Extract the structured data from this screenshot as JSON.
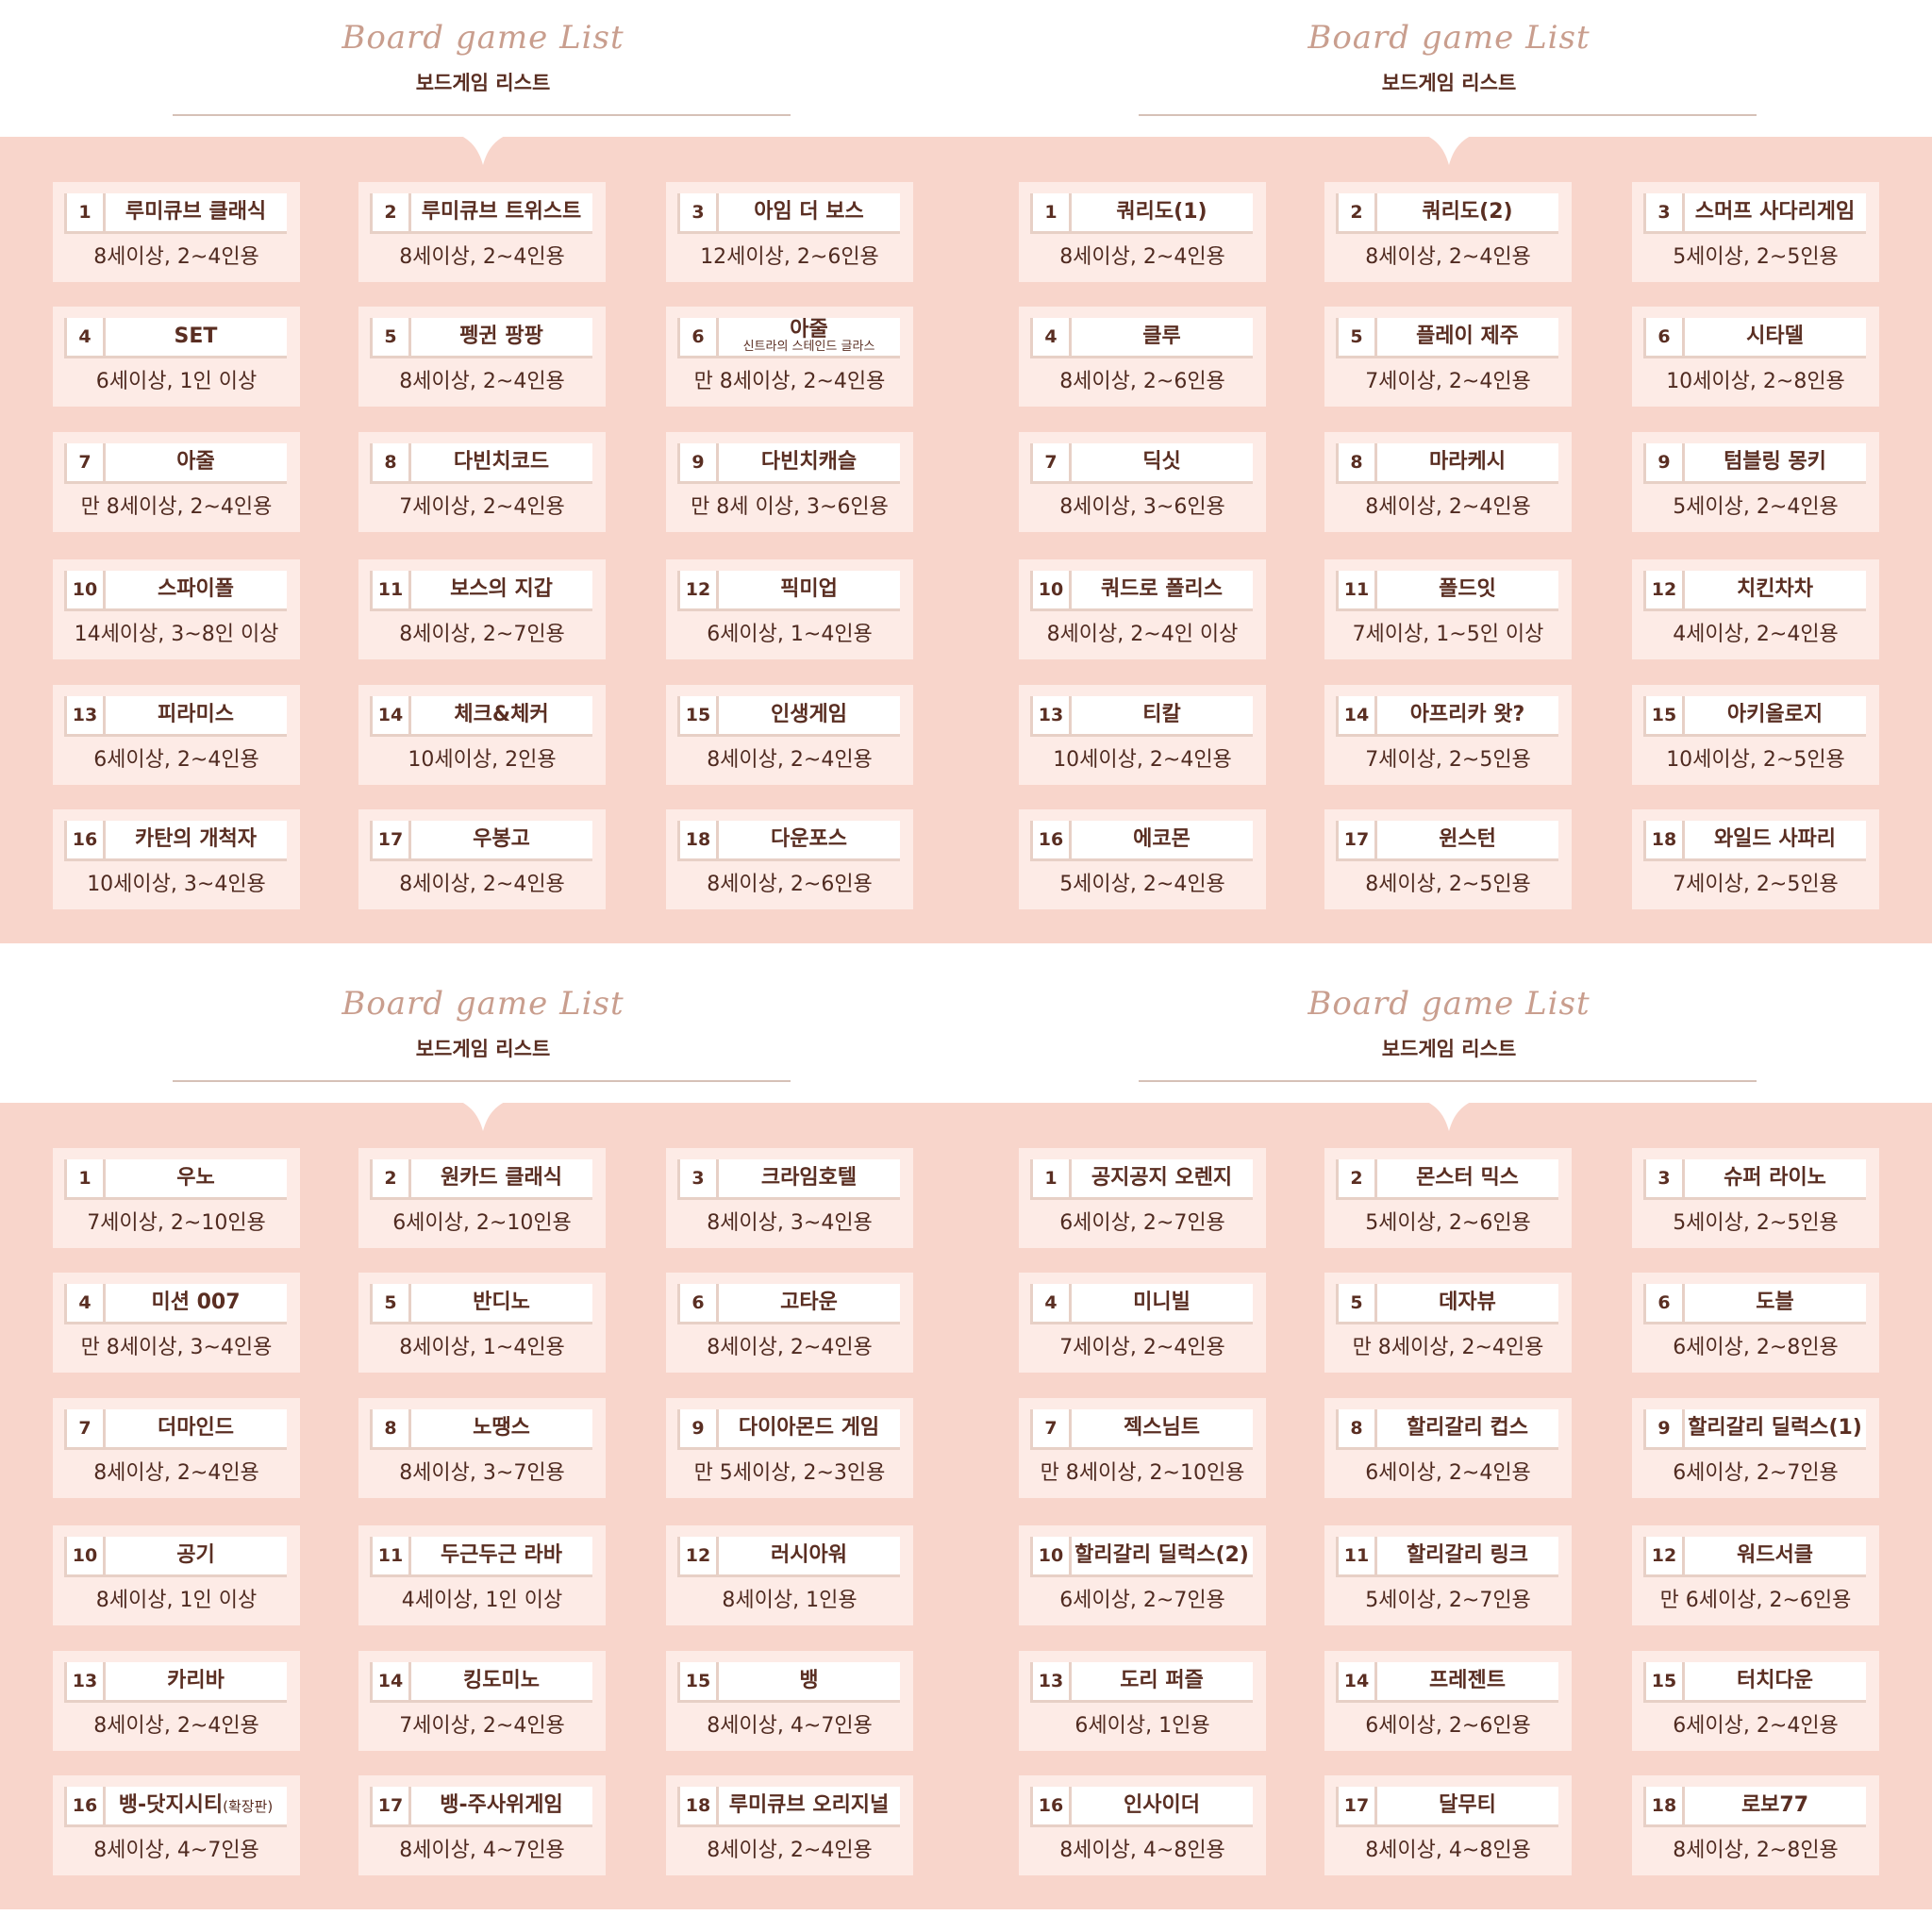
{
  "header": {
    "script_title": "Board game List",
    "kr_title": "보드게임 리스트"
  },
  "panels": [
    {
      "cards": [
        {
          "num": "1",
          "name": "루미큐브 클래식",
          "info": "8세이상, 2~4인용"
        },
        {
          "num": "2",
          "name": "루미큐브 트위스트",
          "info": "8세이상, 2~4인용"
        },
        {
          "num": "3",
          "name": "아임 더 보스",
          "info": "12세이상, 2~6인용"
        },
        {
          "num": "4",
          "name": "SET",
          "info": "6세이상, 1인 이상"
        },
        {
          "num": "5",
          "name": "펭귄 팡팡",
          "info": "8세이상, 2~4인용"
        },
        {
          "num": "6",
          "name": "아줄",
          "sub": "신트라의 스테인드 글라스",
          "info": "만 8세이상, 2~4인용"
        },
        {
          "num": "7",
          "name": "아줄",
          "info": "만 8세이상, 2~4인용"
        },
        {
          "num": "8",
          "name": "다빈치코드",
          "info": "7세이상, 2~4인용"
        },
        {
          "num": "9",
          "name": "다빈치캐슬",
          "info": "만 8세 이상, 3~6인용"
        },
        {
          "num": "10",
          "name": "스파이폴",
          "info": "14세이상, 3~8인 이상"
        },
        {
          "num": "11",
          "name": "보스의 지갑",
          "info": "8세이상, 2~7인용"
        },
        {
          "num": "12",
          "name": "픽미업",
          "info": "6세이상, 1~4인용"
        },
        {
          "num": "13",
          "name": "피라미스",
          "info": "6세이상, 2~4인용"
        },
        {
          "num": "14",
          "name": "체크&체커",
          "info": "10세이상, 2인용"
        },
        {
          "num": "15",
          "name": "인생게임",
          "info": "8세이상, 2~4인용"
        },
        {
          "num": "16",
          "name": "카탄의 개척자",
          "info": "10세이상, 3~4인용"
        },
        {
          "num": "17",
          "name": "우봉고",
          "info": "8세이상, 2~4인용"
        },
        {
          "num": "18",
          "name": "다운포스",
          "info": "8세이상, 2~6인용"
        }
      ]
    },
    {
      "cards": [
        {
          "num": "1",
          "name": "쿼리도(1)",
          "info": "8세이상, 2~4인용"
        },
        {
          "num": "2",
          "name": "쿼리도(2)",
          "info": "8세이상, 2~4인용"
        },
        {
          "num": "3",
          "name": "스머프 사다리게임",
          "info": "5세이상, 2~5인용"
        },
        {
          "num": "4",
          "name": "클루",
          "info": "8세이상, 2~6인용"
        },
        {
          "num": "5",
          "name": "플레이 제주",
          "info": "7세이상, 2~4인용"
        },
        {
          "num": "6",
          "name": "시타델",
          "info": "10세이상, 2~8인용"
        },
        {
          "num": "7",
          "name": "딕싯",
          "info": "8세이상, 3~6인용"
        },
        {
          "num": "8",
          "name": "마라케시",
          "info": "8세이상, 2~4인용"
        },
        {
          "num": "9",
          "name": "텀블링 몽키",
          "info": "5세이상, 2~4인용"
        },
        {
          "num": "10",
          "name": "쿼드로 폴리스",
          "info": "8세이상, 2~4인 이상"
        },
        {
          "num": "11",
          "name": "폴드잇",
          "info": "7세이상, 1~5인 이상"
        },
        {
          "num": "12",
          "name": "치킨차차",
          "info": "4세이상, 2~4인용"
        },
        {
          "num": "13",
          "name": "티칼",
          "info": "10세이상, 2~4인용"
        },
        {
          "num": "14",
          "name": "아프리카 왓?",
          "info": "7세이상, 2~5인용"
        },
        {
          "num": "15",
          "name": "아키올로지",
          "info": "10세이상, 2~5인용"
        },
        {
          "num": "16",
          "name": "에코몬",
          "info": "5세이상, 2~4인용"
        },
        {
          "num": "17",
          "name": "윈스턴",
          "info": "8세이상, 2~5인용"
        },
        {
          "num": "18",
          "name": "와일드 사파리",
          "info": "7세이상, 2~5인용"
        }
      ]
    },
    {
      "cards": [
        {
          "num": "1",
          "name": "우노",
          "info": "7세이상, 2~10인용"
        },
        {
          "num": "2",
          "name": "원카드 클래식",
          "info": "6세이상, 2~10인용"
        },
        {
          "num": "3",
          "name": "크라임호텔",
          "info": "8세이상, 3~4인용"
        },
        {
          "num": "4",
          "name": "미션 007",
          "info": "만 8세이상, 3~4인용"
        },
        {
          "num": "5",
          "name": "반디노",
          "info": "8세이상, 1~4인용"
        },
        {
          "num": "6",
          "name": "고타운",
          "info": "8세이상, 2~4인용"
        },
        {
          "num": "7",
          "name": "더마인드",
          "info": "8세이상, 2~4인용"
        },
        {
          "num": "8",
          "name": "노땡스",
          "info": "8세이상, 3~7인용"
        },
        {
          "num": "9",
          "name": "다이아몬드 게임",
          "info": "만 5세이상, 2~3인용"
        },
        {
          "num": "10",
          "name": "공기",
          "info": "8세이상, 1인 이상"
        },
        {
          "num": "11",
          "name": "두근두근 라바",
          "info": "4세이상, 1인 이상"
        },
        {
          "num": "12",
          "name": "러시아워",
          "info": "8세이상, 1인용"
        },
        {
          "num": "13",
          "name": "카리바",
          "info": "8세이상, 2~4인용"
        },
        {
          "num": "14",
          "name": "킹도미노",
          "info": "7세이상, 2~4인용"
        },
        {
          "num": "15",
          "name": "뱅",
          "info": "8세이상, 4~7인용"
        },
        {
          "num": "16",
          "name": "뱅-닷지시티",
          "small": "(확장판)",
          "info": "8세이상, 4~7인용"
        },
        {
          "num": "17",
          "name": "뱅-주사위게임",
          "info": "8세이상, 4~7인용"
        },
        {
          "num": "18",
          "name": "루미큐브 오리지널",
          "info": "8세이상, 2~4인용"
        }
      ]
    },
    {
      "cards": [
        {
          "num": "1",
          "name": "공지공지 오렌지",
          "info": "6세이상, 2~7인용"
        },
        {
          "num": "2",
          "name": "몬스터 믹스",
          "info": "5세이상, 2~6인용"
        },
        {
          "num": "3",
          "name": "슈퍼 라이노",
          "info": "5세이상, 2~5인용"
        },
        {
          "num": "4",
          "name": "미니빌",
          "info": "7세이상, 2~4인용"
        },
        {
          "num": "5",
          "name": "데자뷰",
          "info": "만 8세이상, 2~4인용"
        },
        {
          "num": "6",
          "name": "도블",
          "info": "6세이상, 2~8인용"
        },
        {
          "num": "7",
          "name": "젝스님트",
          "info": "만 8세이상, 2~10인용"
        },
        {
          "num": "8",
          "name": "할리갈리 컵스",
          "info": "6세이상, 2~4인용"
        },
        {
          "num": "9",
          "name": "할리갈리 딜럭스(1)",
          "info": "6세이상, 2~7인용"
        },
        {
          "num": "10",
          "name": "할리갈리 딜럭스(2)",
          "info": "6세이상, 2~7인용"
        },
        {
          "num": "11",
          "name": "할리갈리 링크",
          "info": "5세이상, 2~7인용"
        },
        {
          "num": "12",
          "name": "워드서클",
          "info": "만 6세이상, 2~6인용"
        },
        {
          "num": "13",
          "name": "도리 퍼즐",
          "info": "6세이상, 1인용"
        },
        {
          "num": "14",
          "name": "프레젠트",
          "info": "6세이상, 2~6인용"
        },
        {
          "num": "15",
          "name": "터치다운",
          "info": "6세이상, 2~4인용"
        },
        {
          "num": "16",
          "name": "인사이더",
          "info": "8세이상, 4~8인용"
        },
        {
          "num": "17",
          "name": "달무티",
          "info": "8세이상, 4~8인용"
        },
        {
          "num": "18",
          "name": "로보77",
          "info": "8세이상, 2~8인용"
        }
      ]
    }
  ]
}
